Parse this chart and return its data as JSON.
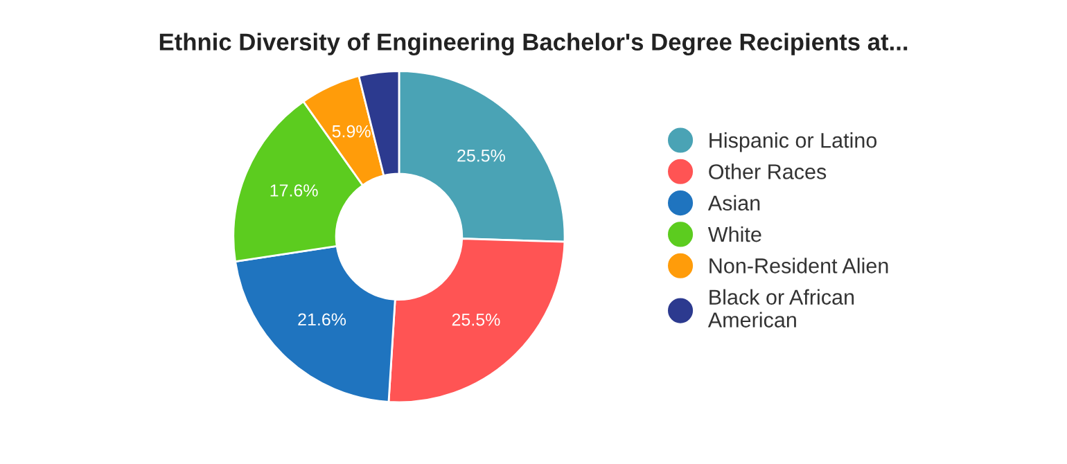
{
  "chart_data": {
    "type": "donut",
    "title": "Ethnic Diversity of Engineering Bachelor's Degree Recipients at...",
    "categories": [
      "Hispanic or Latino",
      "Other Races",
      "Asian",
      "White",
      "Non-Resident Alien",
      "Black or African American"
    ],
    "values": [
      25.5,
      25.5,
      21.6,
      17.6,
      5.9,
      3.9
    ],
    "value_labels": [
      "25.5%",
      "25.5%",
      "21.6%",
      "17.6%",
      "5.9%",
      null
    ],
    "colors": [
      "#4aa3b5",
      "#ff5454",
      "#1f74bf",
      "#5ccc1f",
      "#ff9c0a",
      "#2c3a8f"
    ],
    "legend": "right"
  }
}
